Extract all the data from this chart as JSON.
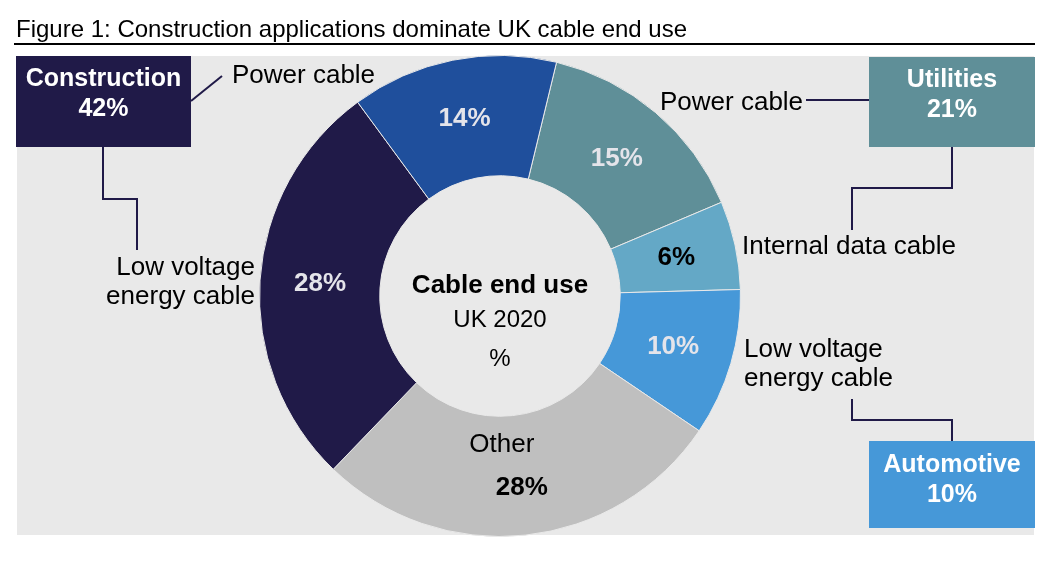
{
  "chart_data": {
    "type": "donut",
    "title": "Figure 1: Construction applications dominate UK cable end use",
    "categories": [
      "Power cable",
      "Internal data cable",
      "Low voltage energy cable",
      "Other",
      "Low voltage energy cable",
      "Power cable"
    ],
    "values": [
      15,
      6,
      10,
      28,
      28,
      14
    ],
    "colors": [
      "#5f8f98",
      "#64a8c6",
      "#4698d8",
      "#bfbfbf",
      "#201a48",
      "#1f4f9c"
    ],
    "value_labels": [
      "15%",
      "6%",
      "10%",
      "28%",
      "28%",
      "14%"
    ],
    "annotations": [
      "Construction\n42%",
      "Utilities\n21%",
      "Automotive\n10%",
      "Cable end use",
      "UK 2020",
      "%"
    ]
  }
}
